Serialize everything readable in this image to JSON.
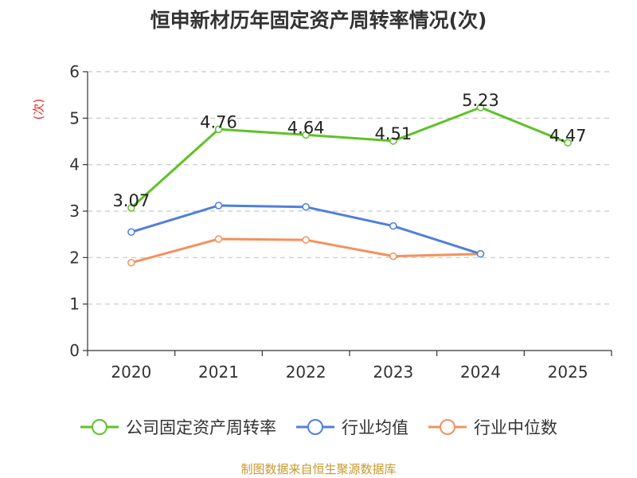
{
  "title": "恒申新材历年固定资产周转率情况(次)",
  "source": "制图数据来自恒生聚源数据库",
  "chart_data": {
    "type": "line",
    "title": "恒申新材历年固定资产周转率情况(次)",
    "ylabel": "(次)",
    "xlabel": "",
    "categories": [
      "2020",
      "2021",
      "2022",
      "2023",
      "2024",
      "2025"
    ],
    "ylim": [
      0,
      6
    ],
    "yticks": [
      0,
      1,
      2,
      3,
      4,
      5,
      6
    ],
    "grid": true,
    "legend_position": "bottom",
    "series": [
      {
        "name": "公司固定资产周转率",
        "color": "#5ec229",
        "values": [
          3.07,
          4.76,
          4.64,
          4.51,
          5.23,
          4.47
        ],
        "labels": [
          "3.07",
          "4.76",
          "4.64",
          "4.51",
          "5.23",
          "4.47"
        ],
        "show_labels": true
      },
      {
        "name": "行业均值",
        "color": "#4f7fdb",
        "values": [
          2.55,
          3.12,
          3.09,
          2.68,
          2.08,
          null
        ],
        "show_labels": false
      },
      {
        "name": "行业中位数",
        "color": "#f4915c",
        "values": [
          1.89,
          2.4,
          2.38,
          2.03,
          2.08,
          null
        ],
        "show_labels": false
      }
    ]
  }
}
